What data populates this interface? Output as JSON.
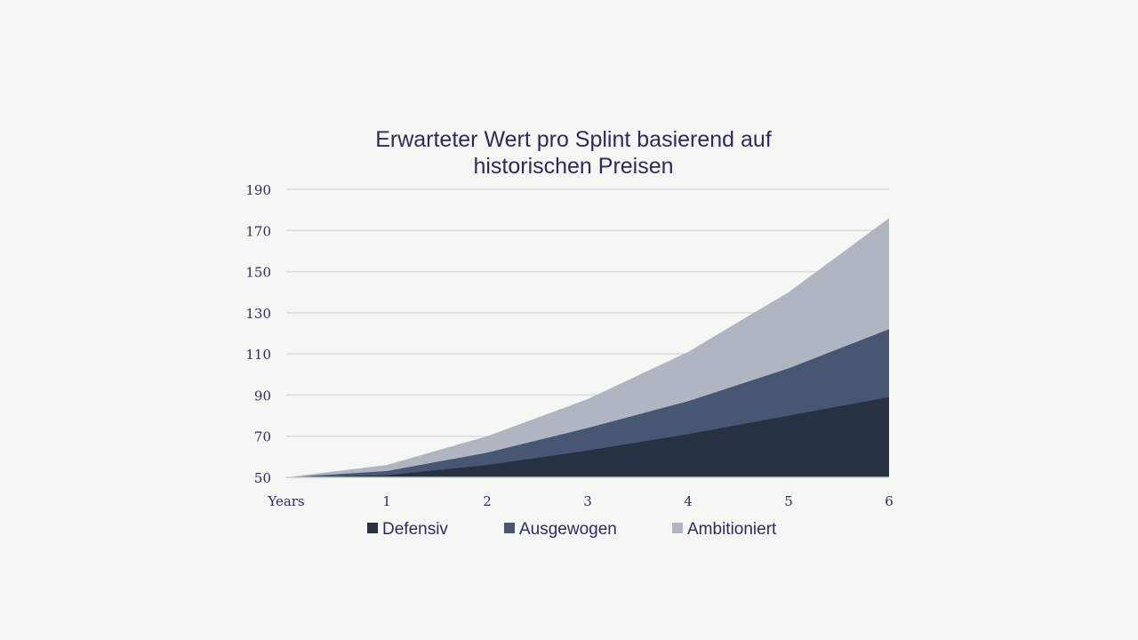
{
  "chart_data": {
    "type": "area",
    "stacked": true,
    "title_lines": [
      "Erwarteter Wert pro Splint basierend auf",
      "historischen Preisen"
    ],
    "x": [
      0,
      1,
      2,
      3,
      4,
      5,
      6
    ],
    "x_tick_labels": [
      "Years",
      "1",
      "2",
      "3",
      "4",
      "5",
      "6"
    ],
    "y_ticks": [
      "50",
      "70",
      "90",
      "110",
      "130",
      "150",
      "170",
      "190"
    ],
    "ylim": [
      50,
      190
    ],
    "grid": true,
    "legend_position": "bottom",
    "series": [
      {
        "name": "Defensiv",
        "color": "#283142",
        "values": [
          50,
          51,
          56,
          63,
          71,
          80,
          89
        ]
      },
      {
        "name": "Ausgewogen",
        "color": "#465673",
        "values": [
          50,
          53,
          62,
          74,
          87,
          103,
          122
        ]
      },
      {
        "name": "Ambitioniert",
        "color": "#afb6c1",
        "values": [
          50,
          56,
          70,
          88,
          111,
          140,
          176
        ]
      }
    ]
  }
}
